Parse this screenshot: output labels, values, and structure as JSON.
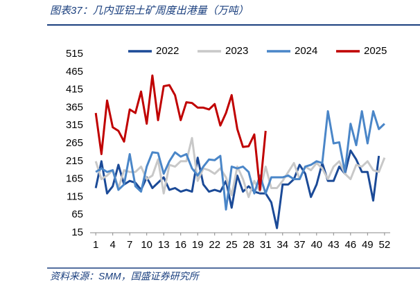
{
  "chart_data": {
    "type": "line",
    "title": "图表37：几内亚铝土矿周度出港量（万吨）",
    "source": "资料来源：SMM，国盛证券研究所",
    "x": [
      1,
      2,
      3,
      4,
      5,
      6,
      7,
      8,
      9,
      10,
      11,
      12,
      13,
      14,
      15,
      16,
      17,
      18,
      19,
      20,
      21,
      22,
      23,
      24,
      25,
      26,
      27,
      28,
      29,
      30,
      31,
      32,
      33,
      34,
      35,
      36,
      37,
      38,
      39,
      40,
      41,
      42,
      43,
      44,
      45,
      46,
      47,
      48,
      49,
      50,
      51,
      52
    ],
    "xlim": [
      0,
      53
    ],
    "xticks": [
      1,
      4,
      7,
      10,
      13,
      16,
      19,
      22,
      25,
      28,
      31,
      34,
      37,
      40,
      43,
      46,
      49,
      52
    ],
    "ylim": [
      15,
      515
    ],
    "yticks": [
      15,
      65,
      115,
      165,
      215,
      265,
      315,
      365,
      415,
      465,
      515
    ],
    "grid": false,
    "legend": "top",
    "series": [
      {
        "name": "2022",
        "color": "#1b4a97",
        "values": [
          140,
          215,
          125,
          145,
          205,
          150,
          160,
          155,
          135,
          170,
          140,
          155,
          170,
          135,
          140,
          130,
          135,
          130,
          225,
          150,
          130,
          135,
          130,
          160,
          85,
          175,
          130,
          145,
          130,
          125,
          125,
          100,
          28,
          150,
          150,
          165,
          205,
          180,
          115,
          150,
          210,
          160,
          160,
          200,
          180,
          245,
          220,
          185,
          185,
          105,
          230,
          null
        ]
      },
      {
        "name": "2023",
        "color": "#c8c8c8",
        "values": [
          215,
          165,
          175,
          190,
          140,
          190,
          185,
          185,
          200,
          165,
          175,
          220,
          125,
          205,
          200,
          215,
          215,
          280,
          160,
          195,
          190,
          180,
          195,
          170,
          120,
          200,
          165,
          115,
          160,
          130,
          200,
          140,
          140,
          160,
          185,
          210,
          165,
          200,
          190,
          210,
          195,
          165,
          200,
          215,
          180,
          165,
          205,
          200,
          215,
          190,
          185,
          225
        ]
      },
      {
        "name": "2024",
        "color": "#4a86c8",
        "values": [
          185,
          195,
          185,
          190,
          135,
          150,
          235,
          145,
          130,
          200,
          240,
          238,
          180,
          215,
          240,
          228,
          235,
          195,
          175,
          200,
          220,
          218,
          230,
          80,
          200,
          195,
          200,
          185,
          125,
          175,
          125,
          170,
          170,
          170,
          175,
          165,
          165,
          200,
          205,
          215,
          210,
          355,
          265,
          268,
          185,
          320,
          260,
          355,
          265,
          355,
          305,
          320
        ]
      },
      {
        "name": "2025",
        "color": "#c00000",
        "values": [
          350,
          235,
          385,
          310,
          300,
          270,
          360,
          350,
          410,
          320,
          455,
          330,
          425,
          428,
          400,
          330,
          380,
          378,
          365,
          365,
          360,
          375,
          315,
          350,
          400,
          305,
          255,
          257,
          290,
          135,
          300,
          null,
          null,
          null,
          null,
          null,
          null,
          null,
          null,
          null,
          null,
          null,
          null,
          null,
          null,
          null,
          null,
          null,
          null,
          null,
          null,
          null
        ]
      }
    ]
  }
}
